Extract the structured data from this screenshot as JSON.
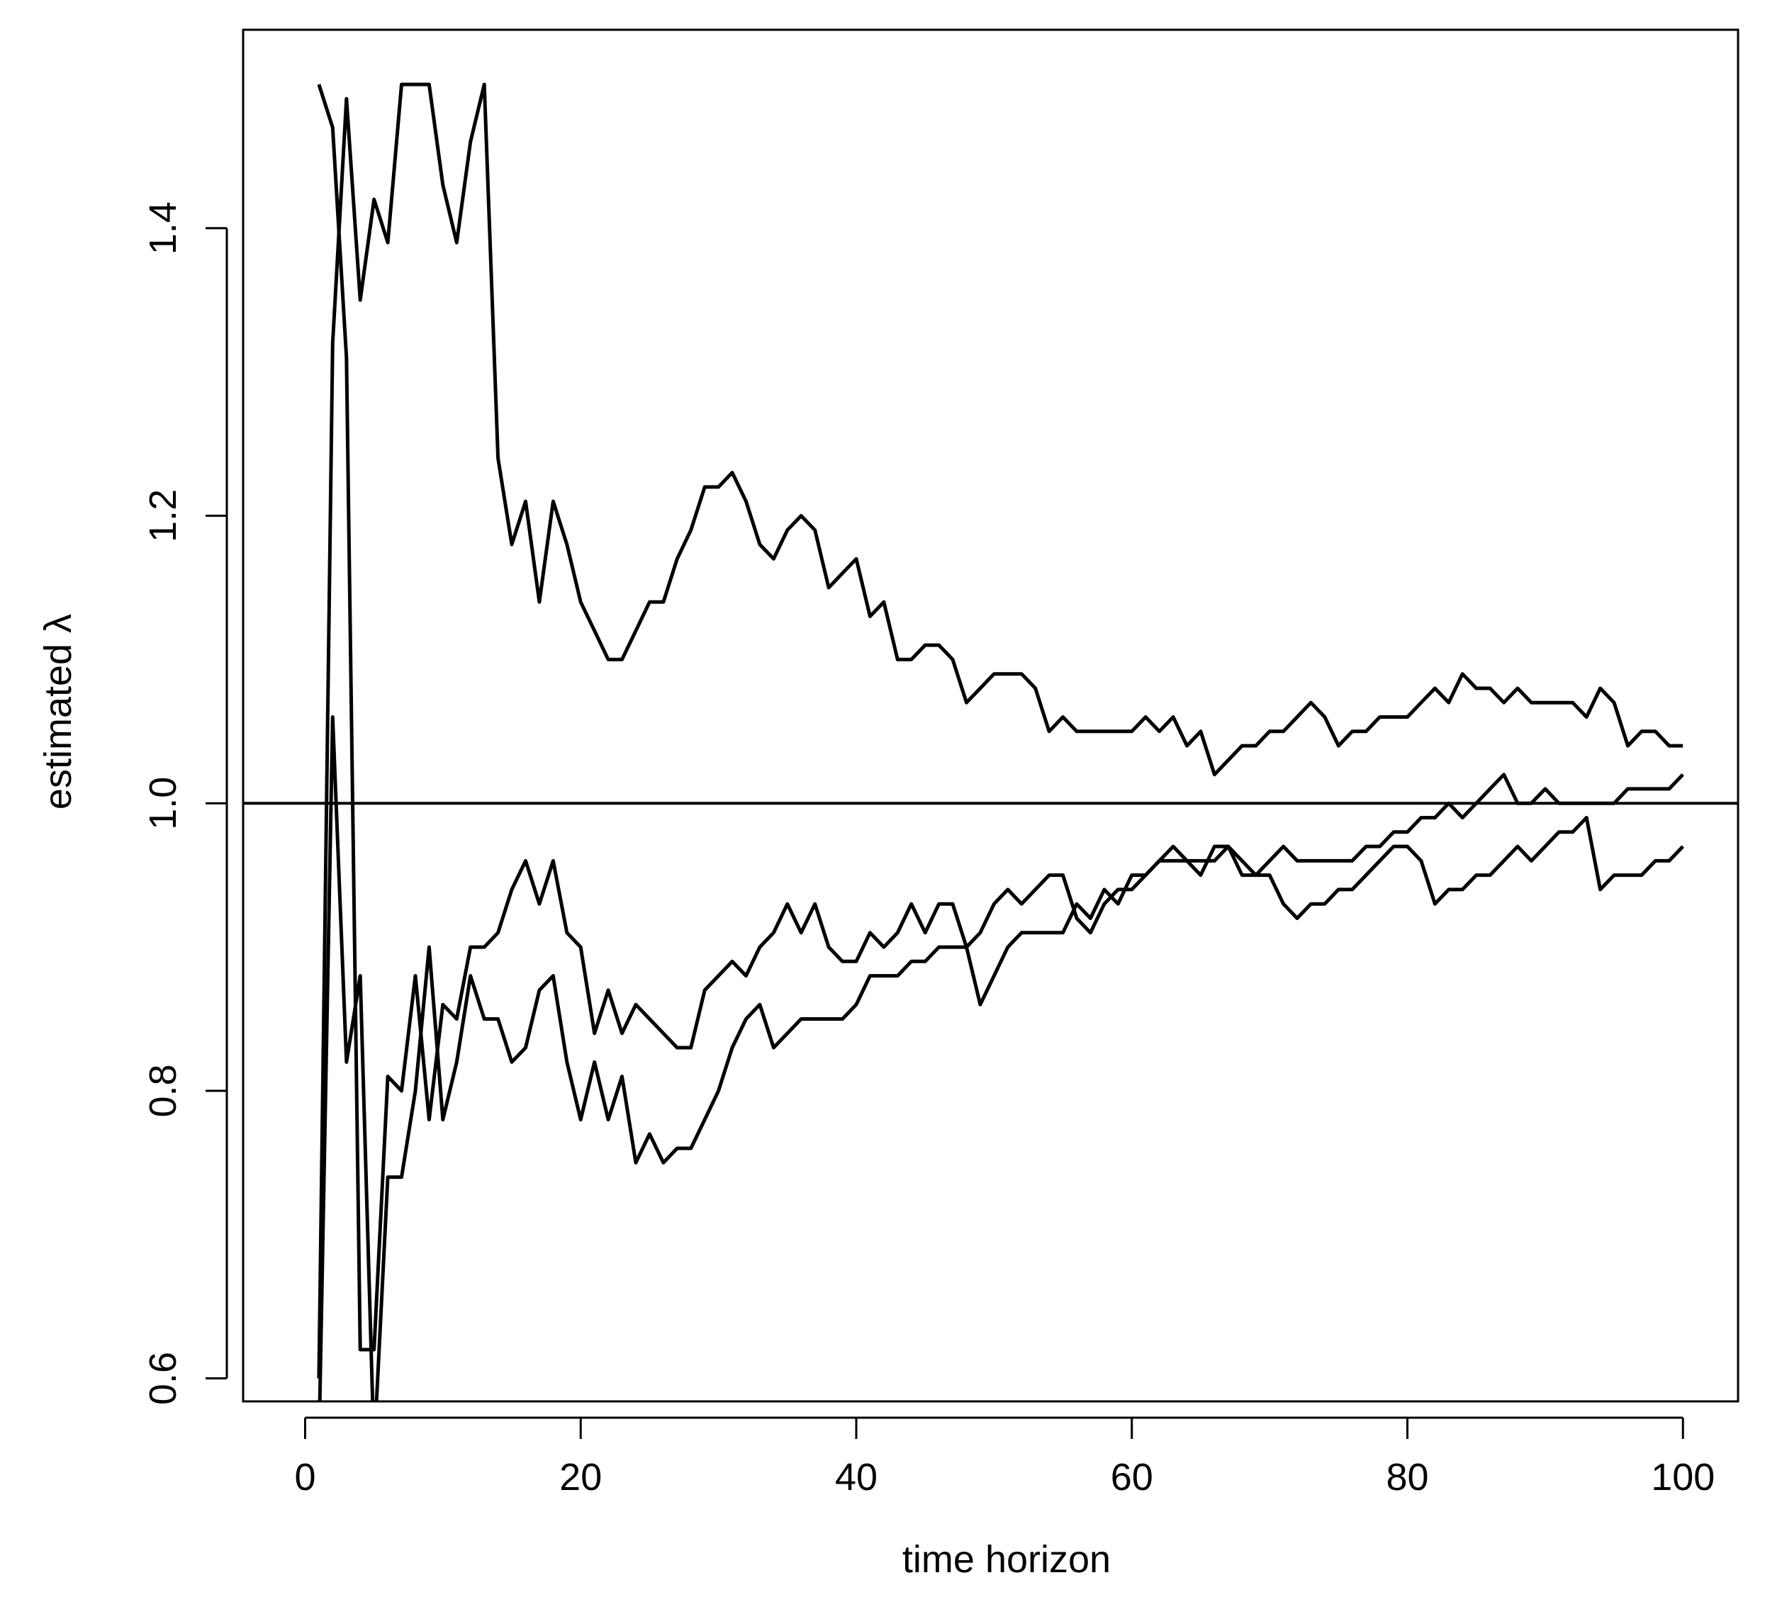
{
  "chart_data": {
    "type": "line",
    "xlabel": "time horizon",
    "ylabel": "estimated λ",
    "xlim": [
      -4.5,
      104
    ],
    "ylim": [
      0.584,
      1.538
    ],
    "xticks": [
      0,
      20,
      40,
      60,
      80,
      100
    ],
    "xtick_labels": [
      "0",
      "20",
      "40",
      "60",
      "80",
      "100"
    ],
    "yticks": [
      0.6,
      0.8,
      1.0,
      1.2,
      1.4
    ],
    "ytick_labels": [
      "0.6",
      "0.8",
      "1.0",
      "1.2",
      "1.4"
    ],
    "reference_line": {
      "y": 1.0
    },
    "grid": false,
    "box": true,
    "line_color": "#000000",
    "series": [
      {
        "x": [
          1,
          2,
          3,
          4,
          5,
          6,
          7,
          8,
          9,
          10,
          11,
          12,
          13,
          14,
          15,
          16,
          17,
          18,
          19,
          20,
          21,
          22,
          23,
          24,
          25,
          26,
          27,
          28,
          29,
          30,
          31,
          32,
          33,
          34,
          35,
          36,
          37,
          38,
          39,
          40,
          41,
          42,
          43,
          44,
          45,
          46,
          47,
          48,
          49,
          50,
          51,
          52,
          53,
          54,
          55,
          56,
          57,
          58,
          59,
          60,
          61,
          62,
          63,
          64,
          65,
          66,
          67,
          68,
          69,
          70,
          71,
          72,
          73,
          74,
          75,
          76,
          77,
          78,
          79,
          80,
          81,
          82,
          83,
          84,
          85,
          86,
          87,
          88,
          89,
          90,
          91,
          92,
          93,
          94,
          95,
          96,
          97,
          98,
          99,
          100
        ],
        "values": [
          1.5,
          1.47,
          1.31,
          0.62,
          0.62,
          0.81,
          0.8,
          0.88,
          0.78,
          0.86,
          0.85,
          0.9,
          0.9,
          0.91,
          0.94,
          0.96,
          0.93,
          0.96,
          0.91,
          0.9,
          0.84,
          0.87,
          0.84,
          0.86,
          0.85,
          0.84,
          0.83,
          0.83,
          0.87,
          0.88,
          0.89,
          0.88,
          0.9,
          0.91,
          0.93,
          0.91,
          0.93,
          0.9,
          0.89,
          0.89,
          0.91,
          0.9,
          0.91,
          0.93,
          0.91,
          0.93,
          0.93,
          0.9,
          0.86,
          0.88,
          0.9,
          0.91,
          0.91,
          0.91,
          0.91,
          0.93,
          0.92,
          0.94,
          0.93,
          0.95,
          0.95,
          0.96,
          0.96,
          0.96,
          0.95,
          0.97,
          0.97,
          0.95,
          0.95,
          0.95,
          0.93,
          0.92,
          0.93,
          0.93,
          0.94,
          0.94,
          0.95,
          0.96,
          0.97,
          0.97,
          0.96,
          0.93,
          0.94,
          0.94,
          0.95,
          0.95,
          0.96,
          0.97,
          0.96,
          0.97,
          0.98,
          0.98,
          0.99,
          0.94,
          0.95,
          0.95,
          0.95,
          0.96,
          0.96,
          0.97
        ]
      },
      {
        "x": [
          1,
          2,
          3,
          4,
          5,
          6,
          7,
          8,
          9,
          10,
          11,
          12,
          13,
          14,
          15,
          16,
          17,
          18,
          19,
          20,
          21,
          22,
          23,
          24,
          25,
          26,
          27,
          28,
          29,
          30,
          31,
          32,
          33,
          34,
          35,
          36,
          37,
          38,
          39,
          40,
          41,
          42,
          43,
          44,
          45,
          46,
          47,
          48,
          49,
          50,
          51,
          52,
          53,
          54,
          55,
          56,
          57,
          58,
          59,
          60,
          61,
          62,
          63,
          64,
          65,
          66,
          67,
          68,
          69,
          70,
          71,
          72,
          73,
          74,
          75,
          76,
          77,
          78,
          79,
          80,
          81,
          82,
          83,
          84,
          85,
          86,
          87,
          88,
          89,
          90,
          91,
          92,
          93,
          94,
          95,
          96,
          97,
          98,
          99,
          100
        ],
        "values": [
          0.6,
          1.32,
          1.49,
          1.35,
          1.42,
          1.39,
          1.5,
          1.5,
          1.5,
          1.43,
          1.39,
          1.46,
          1.5,
          1.24,
          1.18,
          1.21,
          1.14,
          1.21,
          1.18,
          1.14,
          1.12,
          1.1,
          1.1,
          1.12,
          1.14,
          1.14,
          1.17,
          1.19,
          1.22,
          1.22,
          1.23,
          1.21,
          1.18,
          1.17,
          1.19,
          1.2,
          1.19,
          1.15,
          1.16,
          1.17,
          1.13,
          1.14,
          1.1,
          1.1,
          1.11,
          1.11,
          1.1,
          1.07,
          1.08,
          1.09,
          1.09,
          1.09,
          1.08,
          1.05,
          1.06,
          1.05,
          1.05,
          1.05,
          1.05,
          1.05,
          1.06,
          1.05,
          1.06,
          1.04,
          1.05,
          1.02,
          1.03,
          1.04,
          1.04,
          1.05,
          1.05,
          1.06,
          1.07,
          1.06,
          1.04,
          1.05,
          1.05,
          1.06,
          1.06,
          1.06,
          1.07,
          1.08,
          1.07,
          1.09,
          1.08,
          1.08,
          1.07,
          1.08,
          1.07,
          1.07,
          1.07,
          1.07,
          1.06,
          1.08,
          1.07,
          1.04,
          1.05,
          1.05,
          1.04,
          1.04
        ]
      },
      {
        "x": [
          1,
          2,
          3,
          4,
          5,
          6,
          7,
          8,
          9,
          10,
          11,
          12,
          13,
          14,
          15,
          16,
          17,
          18,
          19,
          20,
          21,
          22,
          23,
          24,
          25,
          26,
          27,
          28,
          29,
          30,
          31,
          32,
          33,
          34,
          35,
          36,
          37,
          38,
          39,
          40,
          41,
          42,
          43,
          44,
          45,
          46,
          47,
          48,
          49,
          50,
          51,
          52,
          53,
          54,
          55,
          56,
          57,
          58,
          59,
          60,
          61,
          62,
          63,
          64,
          65,
          66,
          67,
          68,
          69,
          70,
          71,
          72,
          73,
          74,
          75,
          76,
          77,
          78,
          79,
          80,
          81,
          82,
          83,
          84,
          85,
          86,
          87,
          88,
          89,
          90,
          91,
          92,
          93,
          94,
          95,
          96,
          97,
          98,
          99,
          100
        ],
        "values": [
          0.55,
          1.06,
          0.82,
          0.88,
          0.55,
          0.74,
          0.74,
          0.8,
          0.9,
          0.78,
          0.82,
          0.88,
          0.85,
          0.85,
          0.82,
          0.83,
          0.87,
          0.88,
          0.82,
          0.78,
          0.82,
          0.78,
          0.81,
          0.75,
          0.77,
          0.75,
          0.76,
          0.76,
          0.78,
          0.8,
          0.83,
          0.85,
          0.86,
          0.83,
          0.84,
          0.85,
          0.85,
          0.85,
          0.85,
          0.86,
          0.88,
          0.88,
          0.88,
          0.89,
          0.89,
          0.9,
          0.9,
          0.9,
          0.91,
          0.93,
          0.94,
          0.93,
          0.94,
          0.95,
          0.95,
          0.92,
          0.91,
          0.93,
          0.94,
          0.94,
          0.95,
          0.96,
          0.97,
          0.96,
          0.96,
          0.96,
          0.97,
          0.96,
          0.95,
          0.96,
          0.97,
          0.96,
          0.96,
          0.96,
          0.96,
          0.96,
          0.97,
          0.97,
          0.98,
          0.98,
          0.99,
          0.99,
          1.0,
          0.99,
          1.0,
          1.01,
          1.02,
          1.0,
          1.0,
          1.01,
          1.0,
          1.0,
          1.0,
          1.0,
          1.0,
          1.01,
          1.01,
          1.01,
          1.01,
          1.02
        ]
      }
    ]
  }
}
